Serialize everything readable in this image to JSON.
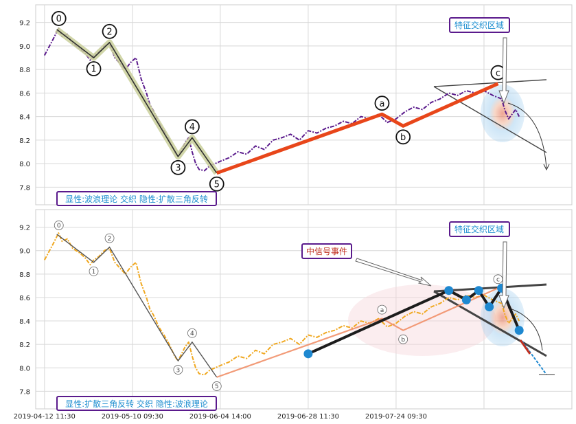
{
  "chart_data": [
    {
      "type": "line",
      "panel": "top",
      "ylim": [
        7.65,
        9.35
      ],
      "yticks": [
        "7.8",
        "8.0",
        "8.2",
        "8.4",
        "8.6",
        "8.8",
        "9.0",
        "9.2"
      ],
      "grid": true,
      "label_box": "显性:波浪理论 交织 隐性:扩散三角反转",
      "callout": "特征交织区域",
      "price_color": "#5a1a8c",
      "wave_labels": [
        "0",
        "1",
        "2",
        "3",
        "4",
        "5",
        "a",
        "b",
        "c"
      ],
      "impulse_color": "#2f2f2f",
      "corrective_color": "#e8461a",
      "series": [
        {
          "name": "impulse",
          "x": [
            0.07,
            0.28,
            0.37,
            0.76,
            0.84,
            0.98
          ],
          "y": [
            9.14,
            8.9,
            9.03,
            8.06,
            8.22,
            7.92
          ]
        },
        {
          "name": "corrective",
          "x": [
            0.98,
            1.92,
            2.04,
            2.58
          ],
          "y": [
            7.92,
            8.42,
            8.32,
            8.68
          ]
        },
        {
          "name": "price",
          "x": [
            0.0,
            0.05,
            0.08,
            0.1,
            0.13,
            0.16,
            0.2,
            0.23,
            0.26,
            0.28,
            0.31,
            0.34,
            0.37,
            0.4,
            0.43,
            0.46,
            0.49,
            0.52,
            0.55,
            0.58,
            0.6,
            0.62,
            0.65,
            0.68,
            0.71,
            0.74,
            0.76,
            0.78,
            0.8,
            0.82,
            0.84,
            0.86,
            0.88,
            0.91,
            0.94,
            0.97,
            1.0,
            1.05,
            1.1,
            1.15,
            1.2,
            1.25,
            1.3,
            1.35,
            1.4,
            1.45,
            1.5,
            1.55,
            1.6,
            1.65,
            1.7,
            1.75,
            1.8,
            1.85,
            1.9,
            1.95,
            2.0,
            2.05,
            2.1,
            2.15,
            2.2,
            2.25,
            2.3,
            2.35,
            2.4,
            2.45,
            2.5,
            2.55,
            2.6,
            2.62,
            2.64,
            2.66,
            2.68,
            2.7
          ],
          "y": [
            8.92,
            9.06,
            9.15,
            9.08,
            9.1,
            9.02,
            8.98,
            8.94,
            8.88,
            8.92,
            8.95,
            9.0,
            9.02,
            8.9,
            8.85,
            8.8,
            8.86,
            8.9,
            8.72,
            8.6,
            8.5,
            8.45,
            8.35,
            8.28,
            8.2,
            8.1,
            8.06,
            8.12,
            8.18,
            8.22,
            8.1,
            8.0,
            7.95,
            7.94,
            7.98,
            8.0,
            8.02,
            8.05,
            8.1,
            8.08,
            8.15,
            8.12,
            8.2,
            8.22,
            8.25,
            8.2,
            8.28,
            8.26,
            8.3,
            8.32,
            8.36,
            8.34,
            8.4,
            8.38,
            8.42,
            8.35,
            8.38,
            8.44,
            8.48,
            8.46,
            8.52,
            8.55,
            8.6,
            8.58,
            8.62,
            8.6,
            8.62,
            8.58,
            8.55,
            8.45,
            8.38,
            8.42,
            8.46,
            8.4
          ]
        }
      ]
    },
    {
      "type": "line",
      "panel": "bottom",
      "ylim": [
        7.65,
        9.35
      ],
      "yticks": [
        "7.8",
        "8.0",
        "8.2",
        "8.4",
        "8.6",
        "8.8",
        "9.0",
        "9.2"
      ],
      "grid": true,
      "label_box": "显性:扩散三角反转 交织 隐性:波浪理论",
      "callout": "特征交织区域",
      "event_label": "中信号事件",
      "price_color": "#f0a820",
      "triangle_color": "#1c1c1c",
      "marker_color": "#1e88d0",
      "wave_labels": [
        "0",
        "1",
        "2",
        "3",
        "4",
        "5",
        "a",
        "b",
        "c"
      ],
      "series": [
        {
          "name": "wave",
          "x": [
            0.07,
            0.28,
            0.37,
            0.76,
            0.84,
            0.98,
            1.92,
            2.04,
            2.58
          ],
          "y": [
            9.14,
            8.9,
            9.03,
            8.06,
            8.22,
            7.92,
            8.42,
            8.32,
            8.68
          ]
        },
        {
          "name": "triangle",
          "x": [
            1.5,
            2.3,
            2.4,
            2.47,
            2.53,
            2.6,
            2.7
          ],
          "y": [
            8.12,
            8.66,
            8.58,
            8.66,
            8.52,
            8.68,
            8.32
          ]
        },
        {
          "name": "price",
          "x": [
            0.0,
            0.05,
            0.08,
            0.1,
            0.13,
            0.16,
            0.2,
            0.23,
            0.26,
            0.28,
            0.31,
            0.34,
            0.37,
            0.4,
            0.43,
            0.46,
            0.49,
            0.52,
            0.55,
            0.58,
            0.6,
            0.62,
            0.65,
            0.68,
            0.71,
            0.74,
            0.76,
            0.78,
            0.8,
            0.82,
            0.84,
            0.86,
            0.88,
            0.91,
            0.94,
            0.97,
            1.0,
            1.05,
            1.1,
            1.15,
            1.2,
            1.25,
            1.3,
            1.35,
            1.4,
            1.45,
            1.5,
            1.55,
            1.6,
            1.65,
            1.7,
            1.75,
            1.8,
            1.85,
            1.9,
            1.95,
            2.0,
            2.05,
            2.1,
            2.15,
            2.2,
            2.25,
            2.3,
            2.35,
            2.4,
            2.45,
            2.5,
            2.55,
            2.6,
            2.62,
            2.64,
            2.66,
            2.68,
            2.7
          ],
          "y": [
            8.92,
            9.06,
            9.15,
            9.08,
            9.1,
            9.02,
            8.98,
            8.94,
            8.88,
            8.92,
            8.95,
            9.0,
            9.02,
            8.9,
            8.85,
            8.8,
            8.86,
            8.9,
            8.72,
            8.6,
            8.5,
            8.45,
            8.35,
            8.28,
            8.2,
            8.1,
            8.06,
            8.12,
            8.18,
            8.22,
            8.1,
            8.0,
            7.95,
            7.94,
            7.98,
            8.0,
            8.02,
            8.05,
            8.1,
            8.08,
            8.15,
            8.12,
            8.2,
            8.22,
            8.25,
            8.2,
            8.28,
            8.26,
            8.3,
            8.32,
            8.36,
            8.34,
            8.4,
            8.38,
            8.42,
            8.35,
            8.38,
            8.44,
            8.48,
            8.46,
            8.52,
            8.55,
            8.6,
            8.58,
            8.62,
            8.6,
            8.62,
            8.58,
            8.55,
            8.45,
            8.38,
            8.42,
            8.46,
            8.4
          ]
        }
      ]
    }
  ],
  "xaxis": {
    "xlim": [
      -0.05,
      3.0
    ],
    "ticks": [
      {
        "x": 0.0,
        "label": "2019-04-12 11:30"
      },
      {
        "x": 0.5,
        "label": "2019-05-10 09:30"
      },
      {
        "x": 1.0,
        "label": "2019-06-04 14:00"
      },
      {
        "x": 1.5,
        "label": "2019-06-28 11:30"
      },
      {
        "x": 2.0,
        "label": "2019-07-24 09:30"
      },
      {
        "x": 2.5,
        "label": ""
      }
    ]
  }
}
